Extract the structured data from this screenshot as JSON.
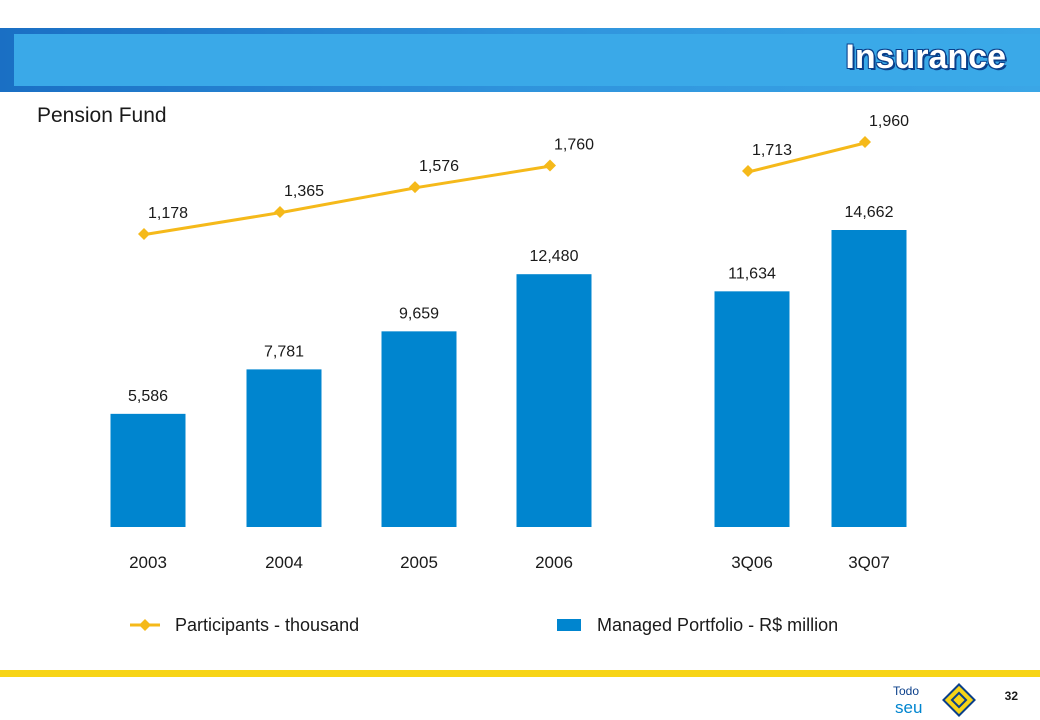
{
  "header": {
    "title": "Insurance"
  },
  "subtitle": "Pension Fund",
  "colors": {
    "bar": "#0085cf",
    "line": "#f5b91a",
    "banner_dark": "#1a6fc4",
    "banner_light": "#3aa6e6",
    "footer": "#f7d417"
  },
  "chart_data": {
    "type": "bar",
    "categories": [
      "2003",
      "2004",
      "2005",
      "2006",
      "3Q06",
      "3Q07"
    ],
    "series": [
      {
        "name": "Managed Portfolio - R$ million",
        "type": "bar",
        "values": [
          5586,
          7781,
          9659,
          12480,
          11634,
          14662
        ],
        "labels": [
          "5,586",
          "7,781",
          "9,659",
          "12,480",
          "11,634",
          "14,662"
        ]
      },
      {
        "name": "Participants - thousand",
        "type": "line",
        "values": [
          1178,
          1365,
          1576,
          1760,
          1713,
          1960
        ],
        "labels": [
          "1,178",
          "1,365",
          "1,576",
          "1,760",
          "1,713",
          "1,960"
        ],
        "segments": [
          [
            0,
            3
          ],
          [
            4,
            5
          ]
        ]
      }
    ],
    "legend": {
      "position": "bottom",
      "items": [
        "Participants - thousand",
        "Managed Portfolio - R$ million"
      ]
    },
    "grid": false
  },
  "footer": {
    "page_number": "32",
    "logo_text_top": "Todo",
    "logo_text_bottom": "seu"
  }
}
